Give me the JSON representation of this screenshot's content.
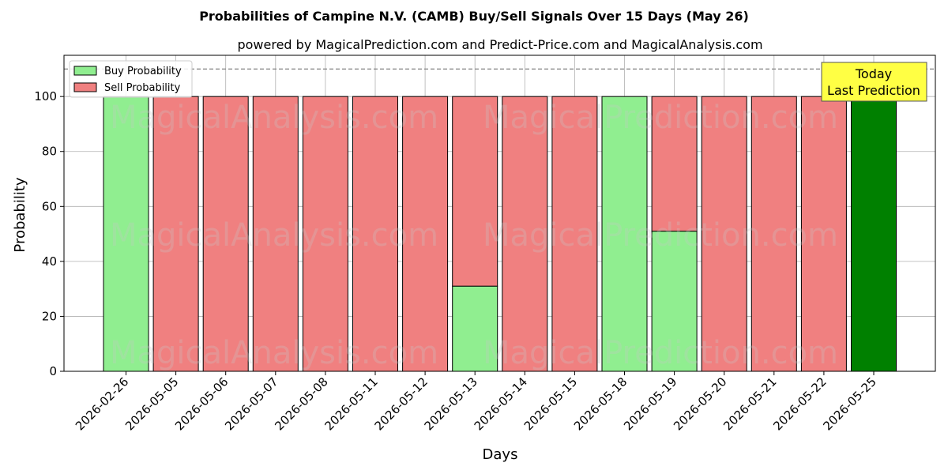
{
  "chart_data": {
    "type": "bar",
    "stacked": true,
    "title": "Probabilities of Campine N.V. (CAMB) Buy/Sell Signals Over 15 Days (May 26)",
    "subtitle": "powered by MagicalPrediction.com and Predict-Price.com and MagicalAnalysis.com",
    "xlabel": "Days",
    "ylabel": "Probability",
    "ylim": [
      0,
      115
    ],
    "yticks": [
      0,
      20,
      40,
      60,
      80,
      100
    ],
    "grid": true,
    "legend_position": "top-left",
    "reference_line": 110,
    "categories": [
      "2026-02-26",
      "2026-05-05",
      "2026-05-06",
      "2026-05-07",
      "2026-05-08",
      "2026-05-11",
      "2026-05-12",
      "2026-05-13",
      "2026-05-14",
      "2026-05-15",
      "2026-05-18",
      "2026-05-19",
      "2026-05-20",
      "2026-05-21",
      "2026-05-22",
      "2026-05-25"
    ],
    "series": [
      {
        "name": "Buy Probability",
        "color": "#90ee90",
        "values": [
          100,
          0,
          0,
          0,
          0,
          0,
          0,
          31,
          0,
          0,
          100,
          51,
          0,
          0,
          0,
          100
        ]
      },
      {
        "name": "Sell Probability",
        "color": "#f08080",
        "values": [
          0,
          100,
          100,
          100,
          100,
          100,
          100,
          69,
          100,
          100,
          0,
          49,
          100,
          100,
          100,
          0
        ]
      }
    ],
    "highlight": {
      "index": 15,
      "color": "#008000"
    },
    "annotation": {
      "line1": "Today",
      "line2": "Last Prediction",
      "bg_color": "#ffff44"
    },
    "watermarks": [
      "MagicalAnalysis.com",
      "MagicalPrediction.com"
    ]
  }
}
